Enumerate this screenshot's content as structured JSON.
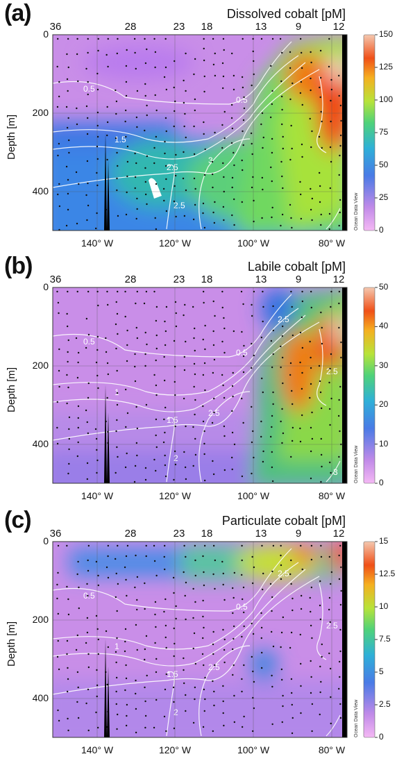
{
  "common": {
    "ylabel": "Depth [m]",
    "odv_label": "Ocean Data View",
    "stations": [
      "36",
      "28",
      "23",
      "18",
      "13",
      "9",
      "12"
    ],
    "xticks": [
      "140° W",
      "120° W",
      "100° W",
      "80° W"
    ],
    "yticks": [
      "0",
      "200",
      "400"
    ]
  },
  "chart_data": [
    {
      "type": "heatmap",
      "panel": "(a)",
      "title": "Dissolved cobalt [pM]",
      "xlabel": "",
      "ylabel": "Depth [m]",
      "xlim": [
        -153,
        -76
      ],
      "ylim": [
        500,
        0
      ],
      "colorbar": {
        "min": 0,
        "max": 150,
        "ticks": [
          "150",
          "125",
          "100",
          "75",
          "50",
          "25",
          "0"
        ]
      },
      "contour_labels": [
        "0.5",
        "0.5",
        "1.5",
        "2.5",
        "2.5",
        "3"
      ],
      "colors": {
        "low": "#e8a0f0",
        "mid": "#2f7fe0",
        "high": "#f02a1a"
      }
    },
    {
      "type": "heatmap",
      "panel": "(b)",
      "title": "Labile cobalt [pM]",
      "xlabel": "",
      "ylabel": "Depth [m]",
      "xlim": [
        -153,
        -76
      ],
      "ylim": [
        500,
        0
      ],
      "colorbar": {
        "min": 0,
        "max": 50,
        "ticks": [
          "50",
          "40",
          "30",
          "20",
          "10",
          "0"
        ]
      },
      "contour_labels": [
        "0.5",
        "0.5",
        "1",
        "1.5",
        "2",
        "2.5",
        "2.5",
        "2.5",
        "3"
      ],
      "colors": {
        "low": "#e8a0f0",
        "mid": "#2f7fe0",
        "high": "#f02a1a"
      }
    },
    {
      "type": "heatmap",
      "panel": "(c)",
      "title": "Particulate cobalt [pM]",
      "xlabel": "",
      "ylabel": "Depth [m]",
      "xlim": [
        -153,
        -76
      ],
      "ylim": [
        500,
        0
      ],
      "colorbar": {
        "min": 0,
        "max": 15,
        "ticks": [
          "15",
          "12.5",
          "10",
          "7.5",
          "5",
          "2.5",
          "0"
        ]
      },
      "contour_labels": [
        "0.5",
        "0.5",
        "1",
        "1.5",
        "2",
        "2.5",
        "2.5",
        "2.5"
      ],
      "colors": {
        "low": "#e8a0f0",
        "mid": "#2f7fe0",
        "high": "#f02a1a"
      }
    }
  ]
}
